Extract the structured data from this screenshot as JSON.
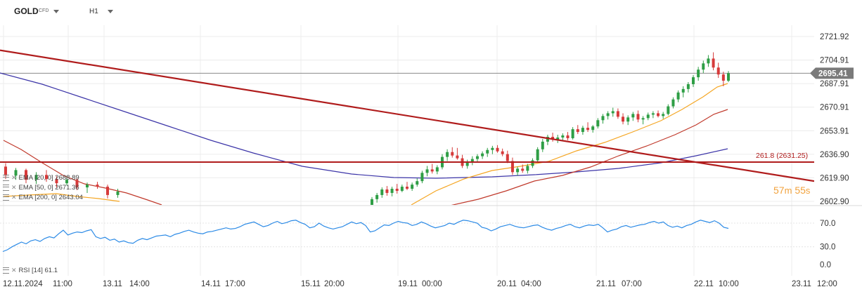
{
  "header": {
    "symbol": "GOLD",
    "instrument_type": "CFD",
    "timeframe": "H1"
  },
  "price_label": "2695.41",
  "countdown": {
    "minutes": "57",
    "min_unit": "m",
    "seconds": "55",
    "sec_unit": "s"
  },
  "indicators": {
    "ema20": "EMA [20, 0] 2688.89",
    "ema50": "EMA [50, 0] 2671.36",
    "ema200": "EMA [200, 0] 2643.04",
    "rsi": "RSI [14] 61.1"
  },
  "fib_label": "261.8 (2631.25)",
  "colors": {
    "ema20": "#f5a623",
    "ema50": "#c0392b",
    "ema200": "#3c35a8",
    "rsi": "#2b8ae6",
    "trendline": "#b01c1c",
    "fib_line": "#b01c1c",
    "bull": "#2e9e45",
    "bear": "#d63a3a",
    "price_line": "#8a8a8a"
  },
  "chart_data": {
    "type": "candlestick",
    "symbol": "GOLD",
    "timeframe": "H1",
    "price_axis": {
      "ticks": [
        2721.92,
        2704.91,
        2687.91,
        2670.91,
        2653.91,
        2636.9,
        2619.9,
        2602.9
      ],
      "tick_labels": [
        "2721.92",
        "2704.91",
        "2687.91",
        "2670.91",
        "2653.91",
        "2636.90",
        "2619.90",
        "2602.90"
      ]
    },
    "rsi_axis": {
      "ticks": [
        70,
        30,
        0
      ],
      "tick_labels": [
        "70.0",
        "30.0",
        "0.0"
      ]
    },
    "time_axis": {
      "labels": [
        "12.11.2024",
        "11:00",
        "13.11",
        "14:00",
        "14.11",
        "17:00",
        "15.11",
        "20:00",
        "19.11",
        "00:00",
        "20.11",
        "04:00",
        "21.11",
        "07:00",
        "22.11",
        "10:00",
        "23.11",
        "12:00"
      ]
    },
    "last_price": 2695.41,
    "fib_level": {
      "ratio": "261.8",
      "price": 2631.25
    },
    "trendline": {
      "start_price": 2712.0,
      "end_price": 2617.5
    },
    "ema20_last": 2688.89,
    "ema50_last": 2671.36,
    "ema200_last": 2643.04,
    "rsi_last": 61.1,
    "candles": [
      [
        2628.0,
        2630.5,
        2619.0,
        2621.5
      ],
      [
        2621.5,
        2627.0,
        2618.5,
        2625.5
      ],
      [
        2625.5,
        2626.5,
        2616.0,
        2618.5
      ],
      [
        2618.5,
        2624.0,
        2615.5,
        2622.0
      ],
      [
        2622.0,
        2625.5,
        2617.0,
        2619.0
      ],
      [
        2619.0,
        2621.0,
        2613.0,
        2616.0
      ],
      [
        2616.0,
        2620.5,
        2614.5,
        2618.5
      ],
      [
        2618.5,
        2619.5,
        2611.0,
        2613.0
      ],
      [
        2613.0,
        2616.5,
        2609.0,
        2615.0
      ],
      [
        2615.0,
        2617.0,
        2612.0,
        2613.5
      ],
      [
        2613.5,
        2615.0,
        2605.0,
        2607.5
      ],
      [
        2607.5,
        2612.0,
        2605.5,
        2610.0
      ]
    ],
    "candles_right": [
      [
        2600.0,
        2606.0,
        2598.5,
        2604.5
      ],
      [
        2604.5,
        2609.0,
        2602.0,
        2607.5
      ],
      [
        2607.5,
        2613.0,
        2605.5,
        2611.5
      ],
      [
        2611.5,
        2614.0,
        2607.0,
        2609.0
      ],
      [
        2609.0,
        2613.5,
        2606.5,
        2612.0
      ],
      [
        2612.0,
        2615.5,
        2608.5,
        2610.5
      ],
      [
        2610.5,
        2615.0,
        2609.5,
        2613.5
      ],
      [
        2613.5,
        2617.0,
        2611.0,
        2612.0
      ],
      [
        2612.0,
        2616.5,
        2610.5,
        2615.0
      ],
      [
        2615.0,
        2619.5,
        2613.5,
        2617.5
      ],
      [
        2617.5,
        2625.0,
        2616.0,
        2623.5
      ],
      [
        2623.5,
        2628.5,
        2621.0,
        2626.0
      ],
      [
        2626.0,
        2630.0,
        2623.0,
        2624.5
      ],
      [
        2624.5,
        2629.0,
        2622.5,
        2627.5
      ],
      [
        2627.5,
        2637.0,
        2626.0,
        2635.0
      ],
      [
        2635.0,
        2640.5,
        2632.0,
        2638.5
      ],
      [
        2638.5,
        2642.0,
        2634.5,
        2636.0
      ],
      [
        2636.0,
        2641.5,
        2633.0,
        2634.0
      ],
      [
        2634.0,
        2636.5,
        2627.0,
        2628.5
      ],
      [
        2628.5,
        2633.0,
        2626.5,
        2631.5
      ],
      [
        2631.5,
        2635.5,
        2629.0,
        2633.5
      ],
      [
        2633.5,
        2637.0,
        2631.0,
        2635.5
      ],
      [
        2635.5,
        2639.0,
        2633.5,
        2637.5
      ],
      [
        2637.5,
        2641.5,
        2635.0,
        2640.0
      ],
      [
        2640.0,
        2643.0,
        2637.0,
        2641.5
      ],
      [
        2641.5,
        2643.5,
        2638.0,
        2639.0
      ],
      [
        2639.0,
        2641.0,
        2635.5,
        2637.0
      ],
      [
        2637.0,
        2639.5,
        2630.5,
        2632.0
      ],
      [
        2632.0,
        2634.5,
        2622.0,
        2624.0
      ],
      [
        2624.0,
        2628.0,
        2621.5,
        2626.5
      ],
      [
        2626.5,
        2629.5,
        2623.5,
        2625.0
      ],
      [
        2625.0,
        2630.0,
        2623.0,
        2628.5
      ],
      [
        2628.5,
        2634.0,
        2627.0,
        2632.5
      ],
      [
        2632.5,
        2642.0,
        2631.0,
        2640.5
      ],
      [
        2640.5,
        2648.0,
        2638.5,
        2646.0
      ],
      [
        2646.0,
        2651.0,
        2643.5,
        2649.5
      ],
      [
        2649.5,
        2652.5,
        2646.0,
        2647.5
      ],
      [
        2647.5,
        2651.0,
        2645.0,
        2649.0
      ],
      [
        2649.0,
        2652.0,
        2646.5,
        2650.5
      ],
      [
        2650.5,
        2653.0,
        2647.0,
        2648.5
      ],
      [
        2648.5,
        2656.5,
        2647.5,
        2655.0
      ],
      [
        2655.0,
        2658.0,
        2651.5,
        2653.0
      ],
      [
        2653.0,
        2657.5,
        2651.0,
        2656.0
      ],
      [
        2656.0,
        2660.0,
        2653.0,
        2654.5
      ],
      [
        2654.5,
        2658.0,
        2652.5,
        2657.0
      ],
      [
        2657.0,
        2663.0,
        2655.5,
        2661.5
      ],
      [
        2661.5,
        2666.0,
        2659.0,
        2664.5
      ],
      [
        2664.5,
        2668.0,
        2662.0,
        2666.5
      ],
      [
        2666.5,
        2670.5,
        2664.0,
        2668.0
      ],
      [
        2668.0,
        2670.0,
        2662.5,
        2664.0
      ],
      [
        2664.0,
        2666.5,
        2658.5,
        2660.5
      ],
      [
        2660.5,
        2665.0,
        2658.0,
        2663.5
      ],
      [
        2663.5,
        2667.5,
        2661.0,
        2666.0
      ],
      [
        2666.0,
        2668.5,
        2660.0,
        2662.0
      ],
      [
        2662.0,
        2664.5,
        2658.5,
        2663.0
      ],
      [
        2663.0,
        2667.0,
        2661.5,
        2665.5
      ],
      [
        2665.5,
        2668.0,
        2663.0,
        2666.5
      ],
      [
        2666.5,
        2668.5,
        2663.5,
        2664.5
      ],
      [
        2664.5,
        2667.5,
        2662.5,
        2666.0
      ],
      [
        2666.0,
        2673.0,
        2665.0,
        2671.5
      ],
      [
        2671.5,
        2678.0,
        2670.0,
        2676.5
      ],
      [
        2676.5,
        2683.0,
        2674.5,
        2681.5
      ],
      [
        2681.5,
        2686.0,
        2678.0,
        2684.0
      ],
      [
        2684.0,
        2689.0,
        2681.5,
        2687.5
      ],
      [
        2687.5,
        2694.0,
        2685.5,
        2692.5
      ],
      [
        2692.5,
        2700.0,
        2690.0,
        2698.0
      ],
      [
        2698.0,
        2704.5,
        2695.5,
        2702.5
      ],
      [
        2702.5,
        2708.5,
        2700.0,
        2706.0
      ],
      [
        2706.0,
        2710.5,
        2697.5,
        2699.5
      ],
      [
        2699.5,
        2703.0,
        2692.0,
        2694.5
      ],
      [
        2694.5,
        2696.5,
        2686.0,
        2690.0
      ],
      [
        2690.0,
        2697.0,
        2689.0,
        2695.41
      ]
    ],
    "ema20": [
      2627,
      2626,
      2624,
      2623,
      2621.5,
      2620,
      2618.5,
      2617
    ],
    "ema200": [
      2697,
      2694,
      2690,
      2686,
      2682,
      2678
    ]
  }
}
